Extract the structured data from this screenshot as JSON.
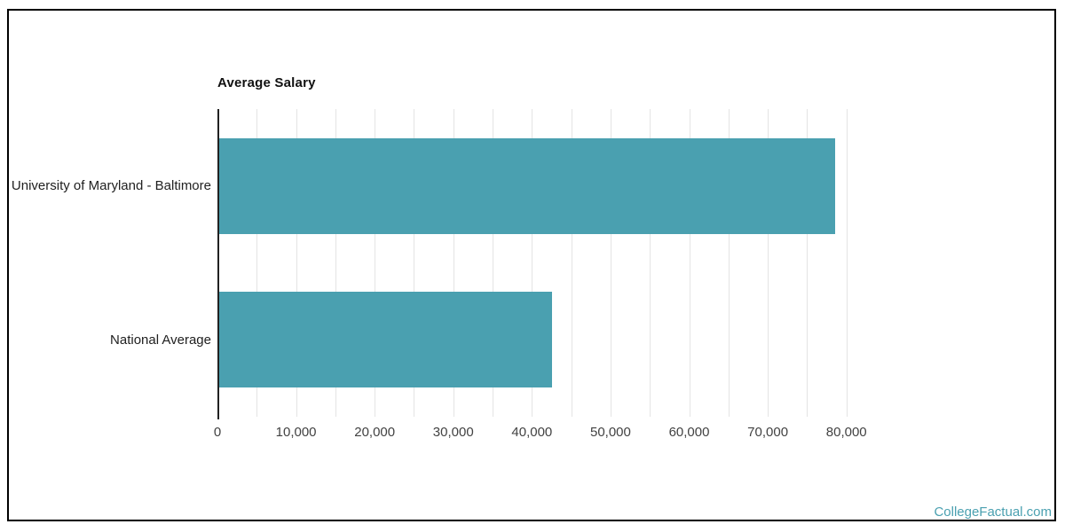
{
  "watermark": "CollegeFactual.com",
  "colors": {
    "bar": "#4aa0b0",
    "gridline": "#e4e4e4",
    "axis_line": "#212121",
    "tick_label": "#424242",
    "category_label": "#212121",
    "title": "#111111",
    "frame_border": "#000000",
    "watermark": "#4aa0b0",
    "background": "#ffffff"
  },
  "chart_data": {
    "type": "bar",
    "orientation": "horizontal",
    "title": "Average Salary",
    "categories": [
      "University of Maryland - Baltimore",
      "National Average"
    ],
    "values": [
      78600,
      42500
    ],
    "xlabel": "",
    "ylabel": "",
    "xlim": [
      0,
      85000
    ],
    "gridline_step": 5000,
    "gridline_max": 80000,
    "x_ticks": [
      0,
      10000,
      20000,
      30000,
      40000,
      50000,
      60000,
      70000,
      80000
    ],
    "x_tick_labels": [
      "0",
      "10,000",
      "20,000",
      "30,000",
      "40,000",
      "50,000",
      "60,000",
      "70,000",
      "80,000"
    ],
    "grid": true,
    "legend": false
  }
}
